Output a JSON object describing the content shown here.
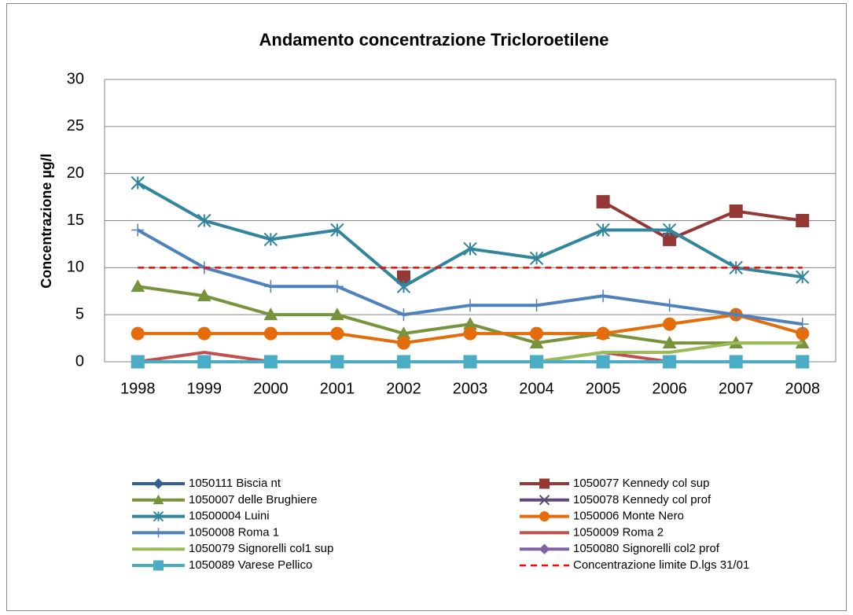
{
  "chart_data": {
    "type": "line",
    "title": "Andamento concentrazione Tricloroetilene",
    "y_label": "Concentrazione µg/l",
    "categories": [
      "1998",
      "1999",
      "2000",
      "2001",
      "2002",
      "2003",
      "2004",
      "2005",
      "2006",
      "2007",
      "2008"
    ],
    "ylim": [
      0,
      30
    ],
    "yticks": [
      0,
      5,
      10,
      15,
      20,
      25,
      30
    ],
    "grid": true,
    "legend": "bottom",
    "series": [
      {
        "name": "1050111 Biscia nt",
        "color": "#365f91",
        "marker": "diamond",
        "values": [
          0,
          0,
          0,
          0,
          0,
          0,
          0,
          0,
          0,
          0,
          0
        ]
      },
      {
        "name": "1050077 Kennedy col sup",
        "color": "#953735",
        "marker": "square",
        "values": [
          null,
          null,
          null,
          null,
          9,
          null,
          null,
          17,
          13,
          16,
          15
        ]
      },
      {
        "name": "1050007 delle Brughiere",
        "color": "#77933c",
        "marker": "triangle",
        "values": [
          8,
          7,
          5,
          5,
          3,
          4,
          2,
          3,
          2,
          2,
          2
        ]
      },
      {
        "name": "1050078 Kennedy col prof",
        "color": "#5f497a",
        "marker": "x",
        "values": [
          0,
          0,
          0,
          0,
          0,
          0,
          0,
          0,
          0,
          0,
          0
        ]
      },
      {
        "name": "10500004 Luini",
        "color": "#31859c",
        "marker": "star",
        "values": [
          19,
          15,
          13,
          14,
          8,
          12,
          11,
          14,
          14,
          10,
          9
        ]
      },
      {
        "name": "1050006 Monte Nero",
        "color": "#e46c0a",
        "marker": "circle",
        "values": [
          3,
          3,
          3,
          3,
          2,
          3,
          3,
          3,
          4,
          5,
          3
        ]
      },
      {
        "name": "1050008 Roma 1",
        "color": "#4f81bd",
        "marker": "plus",
        "values": [
          14,
          10,
          8,
          8,
          5,
          6,
          6,
          7,
          6,
          5,
          4
        ]
      },
      {
        "name": "1050009 Roma 2",
        "color": "#c0504d",
        "marker": "none",
        "values": [
          0,
          1,
          0,
          0,
          0,
          0,
          0,
          1,
          0,
          0,
          0
        ]
      },
      {
        "name": "1050079 Signorelli col1 sup",
        "color": "#9bbb59",
        "marker": "none",
        "values": [
          null,
          null,
          null,
          null,
          null,
          null,
          0,
          1,
          1,
          2,
          2
        ]
      },
      {
        "name": "1050080 Signorelli col2 prof",
        "color": "#8064a2",
        "marker": "diamond",
        "values": [
          0,
          0,
          0,
          0,
          0,
          0,
          0,
          0,
          0,
          0,
          0
        ]
      },
      {
        "name": "1050089 Varese Pellico",
        "color": "#4bacc6",
        "marker": "square",
        "values": [
          0,
          0,
          0,
          0,
          0,
          0,
          0,
          0,
          0,
          0,
          0
        ]
      },
      {
        "name": "Concentrazione limite D.lgs 31/01",
        "color": "#ff0000",
        "marker": "none",
        "dashed": true,
        "values": [
          10,
          10,
          10,
          10,
          10,
          10,
          10,
          10,
          10,
          10,
          10
        ]
      }
    ]
  }
}
